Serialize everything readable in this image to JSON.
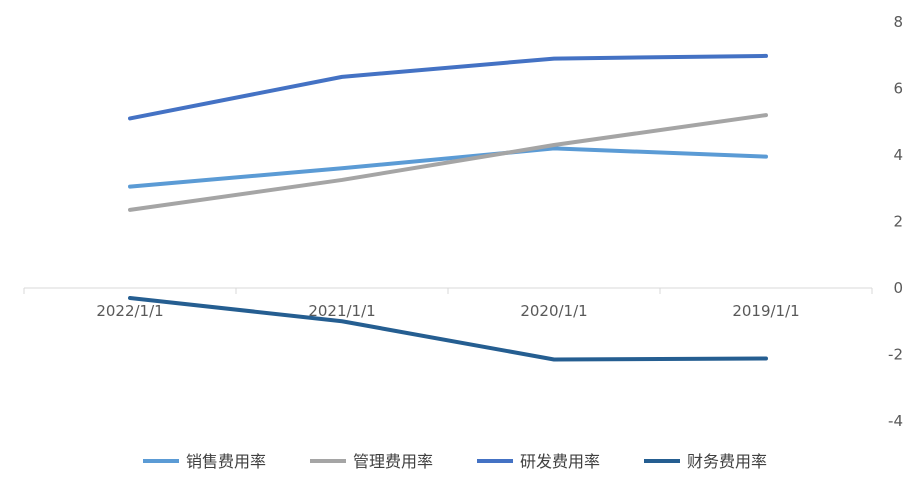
{
  "chart_data": {
    "type": "line",
    "categories": [
      "2022/1/1",
      "2021/1/1",
      "2020/1/1",
      "2019/1/1"
    ],
    "series": [
      {
        "name": "销售费用率",
        "color": "#5B9BD5",
        "values": [
          3.05,
          3.6,
          4.2,
          3.95
        ]
      },
      {
        "name": "管理费用率",
        "color": "#A5A5A5",
        "values": [
          2.35,
          3.25,
          4.3,
          5.2
        ]
      },
      {
        "name": "研发费用率",
        "color": "#4472C4",
        "values": [
          5.1,
          6.35,
          6.9,
          6.98
        ]
      },
      {
        "name": "财务费用率",
        "color": "#255E91",
        "values": [
          -0.3,
          -1.0,
          -2.15,
          -2.12
        ]
      }
    ],
    "ylim": [
      -4,
      8
    ],
    "yticks": [
      "-4",
      "-2",
      "0",
      "2",
      "4",
      "6",
      "8"
    ],
    "grid": false,
    "legend_position": "bottom"
  }
}
